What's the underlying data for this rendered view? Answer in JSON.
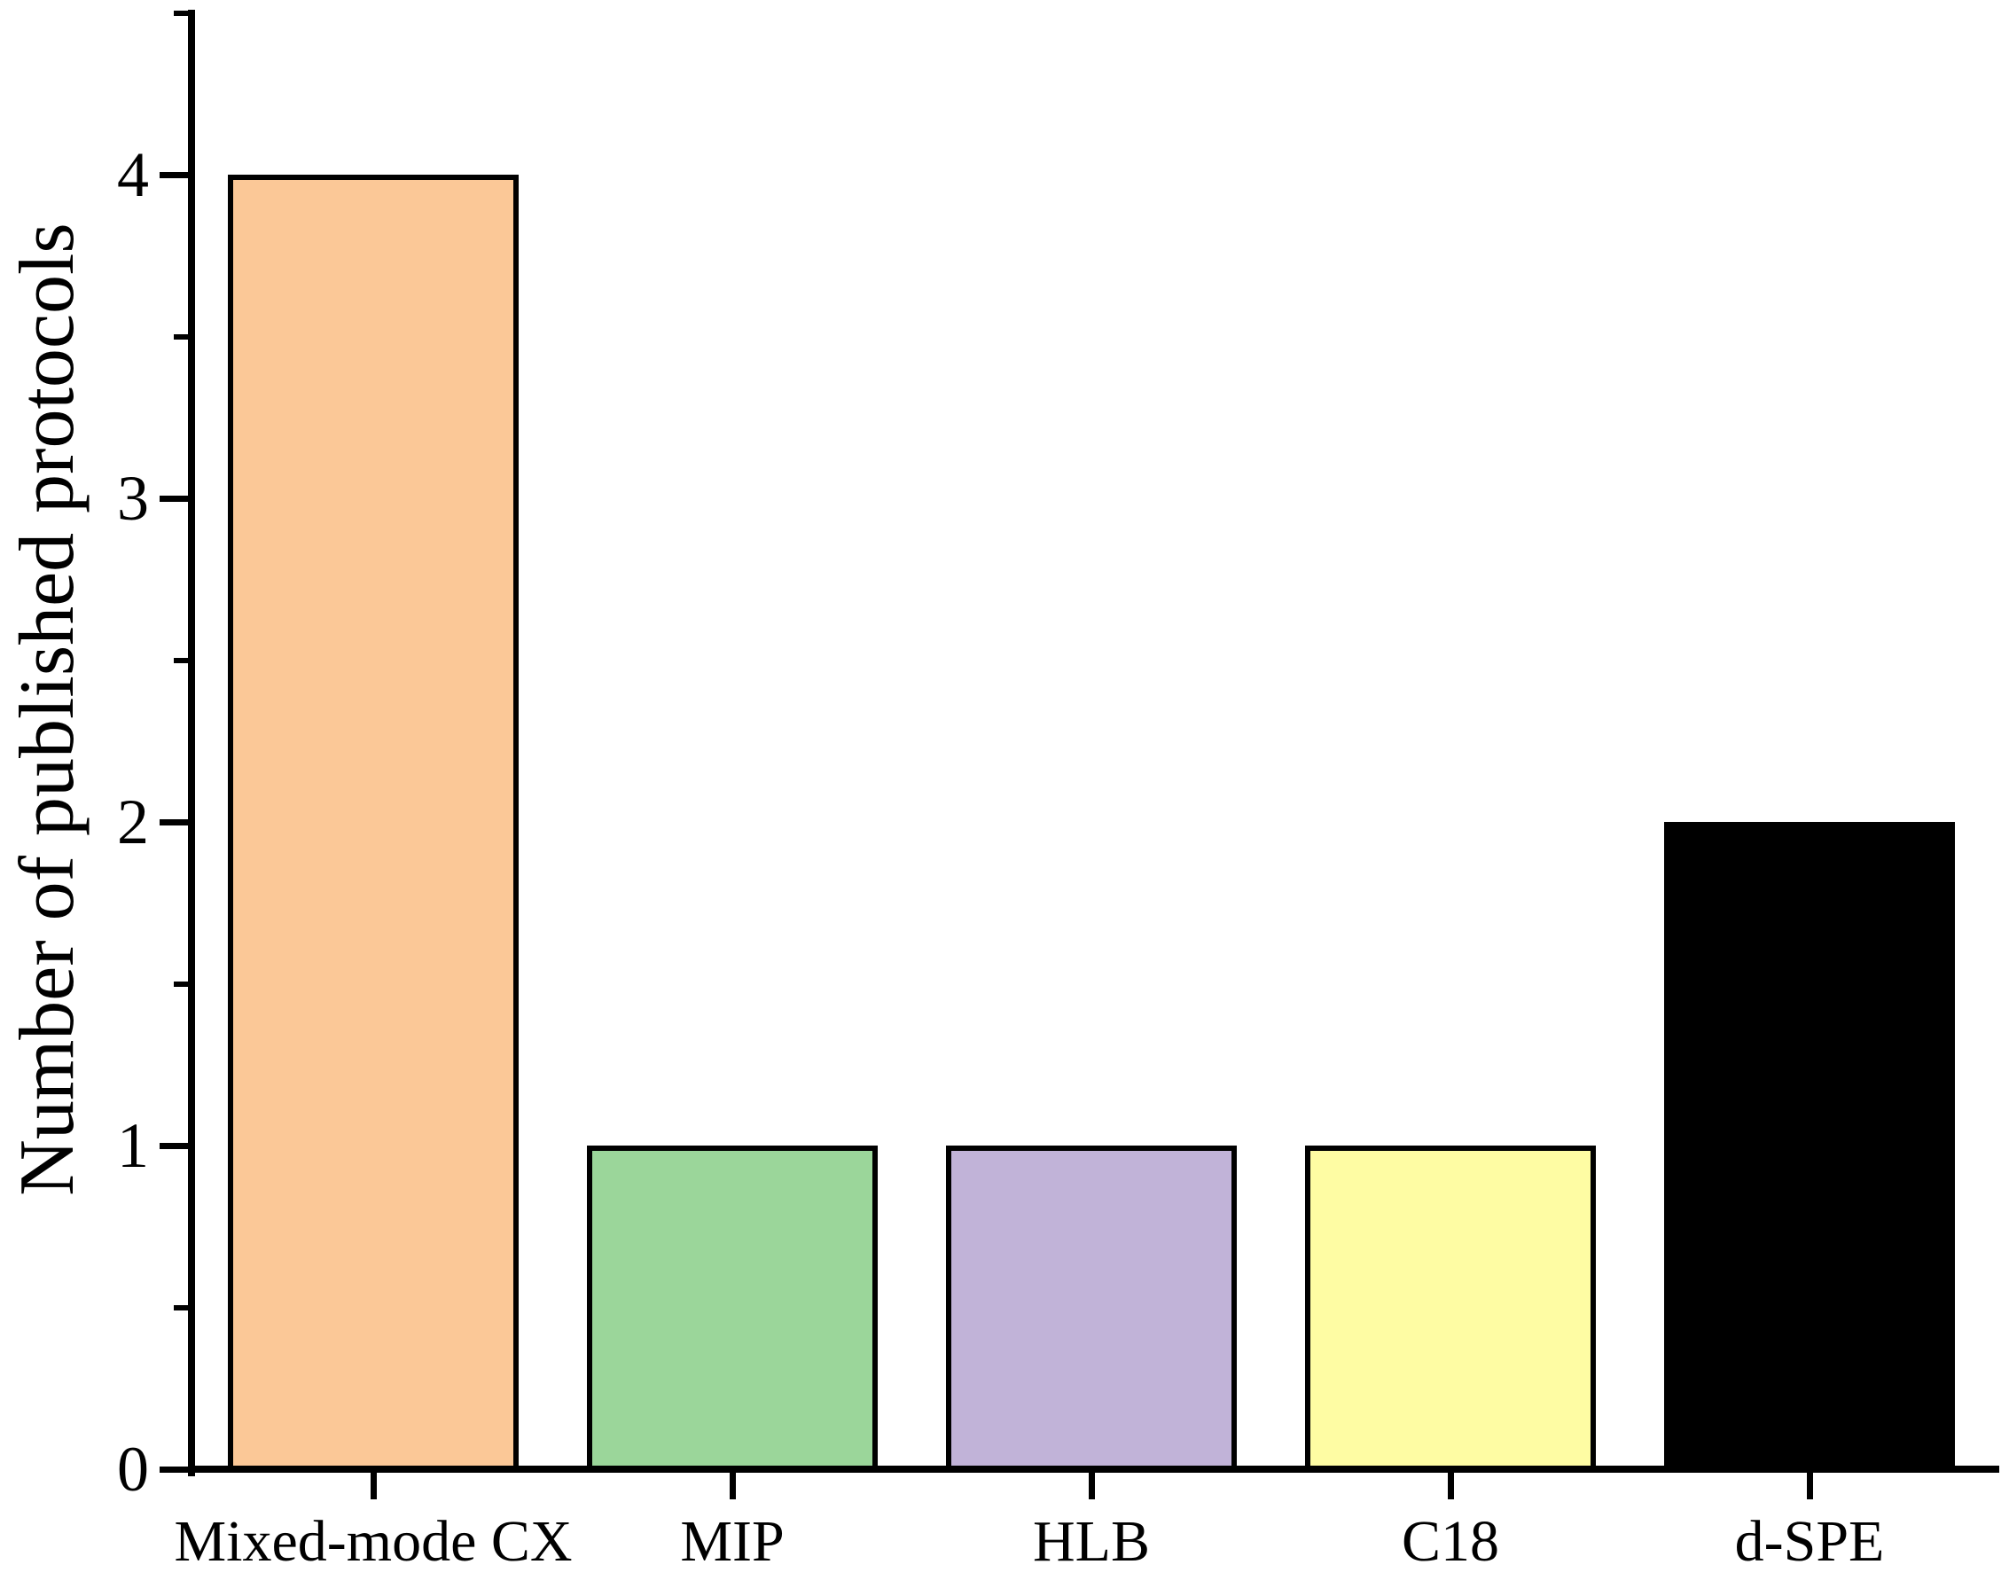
{
  "chart_data": {
    "type": "bar",
    "title": "",
    "categories": [
      "Mixed-mode CX",
      "MIP",
      "HLB",
      "C18",
      "d-SPE"
    ],
    "values": [
      4,
      1,
      1,
      1,
      2
    ],
    "bar_colors": [
      "#FBC897",
      "#9BD69A",
      "#C1B3D8",
      "#FEFCA3",
      "#000000"
    ],
    "bar_edge_color": "#000000",
    "xlabel": "",
    "ylabel": "Number of published protocols",
    "ylim": [
      0,
      4.5
    ],
    "y_major_ticks": [
      0,
      1,
      2,
      3,
      4
    ],
    "y_major_tick_labels": [
      "0",
      "1",
      "2",
      "3",
      "4"
    ],
    "y_minor_ticks": [
      0.5,
      1.5,
      2.5,
      3.5,
      4.5
    ],
    "grid": false,
    "legend": false,
    "background": "#FFFFFF"
  }
}
